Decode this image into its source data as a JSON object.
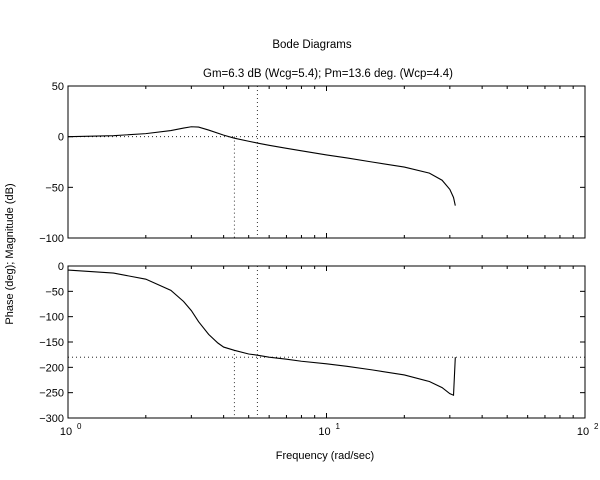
{
  "chart_data": {
    "type": "line",
    "title": "Bode Diagrams",
    "subtitle": "Gm=6.3 dB (Wcg=5.4);  Pm=13.6 deg. (Wcp=4.4)",
    "xlabel": "Frequency (rad/sec)",
    "ylabel": "Phase (deg); Magnitude (dB)",
    "x_scale": "log",
    "xlim": [
      1,
      100
    ],
    "x_ticks": [
      {
        "value": 1,
        "base": "10",
        "exp": "0"
      },
      {
        "value": 10,
        "base": "10",
        "exp": "1"
      },
      {
        "value": 100,
        "base": "10",
        "exp": "2"
      }
    ],
    "crossover_frequencies": {
      "wcg": 5.4,
      "wcp": 4.4
    },
    "grid": false,
    "panels": [
      {
        "name": "magnitude",
        "ylim": [
          -100,
          50
        ],
        "yticks": [
          50,
          0,
          -50,
          -100
        ],
        "ytick_labels": [
          "50",
          "0",
          "−50",
          "−100"
        ],
        "reference_level": 0,
        "series": [
          {
            "x": [
              1.0,
              1.5,
              2.0,
              2.5,
              2.8,
              3.0,
              3.2,
              3.5,
              4.0,
              4.4,
              5.0,
              5.4,
              6.0,
              7.0,
              8.0,
              10.0,
              12.0,
              15.0,
              20.0,
              25.0,
              28.0,
              30.0,
              31.0,
              31.5
            ],
            "y": [
              0,
              1,
              3,
              6,
              8.5,
              9.8,
              9.5,
              6.5,
              1.5,
              -1.5,
              -4.5,
              -6.3,
              -8.5,
              -11.5,
              -14,
              -18,
              -21,
              -25,
              -30,
              -36,
              -43,
              -52,
              -60,
              -68
            ]
          }
        ]
      },
      {
        "name": "phase",
        "ylim": [
          -300,
          0
        ],
        "yticks": [
          0,
          -50,
          -100,
          -150,
          -200,
          -250,
          -300
        ],
        "ytick_labels": [
          "0",
          "−50",
          "−100",
          "−150",
          "−200",
          "−250",
          "−300"
        ],
        "reference_level": -180,
        "series": [
          {
            "x": [
              1.0,
              1.5,
              2.0,
              2.5,
              2.8,
              3.0,
              3.2,
              3.5,
              3.8,
              4.0,
              4.4,
              5.0,
              5.4,
              6.0,
              7.0,
              8.0,
              10.0,
              12.0,
              15.0,
              20.0,
              25.0,
              28.0,
              30.0,
              31.0,
              31.2,
              31.5
            ],
            "y": [
              -8,
              -14,
              -26,
              -48,
              -70,
              -88,
              -110,
              -135,
              -152,
              -160,
              -166.4,
              -173.7,
              -176,
              -180,
              -184,
              -188,
              -193,
              -198,
              -205,
              -215,
              -228,
              -240,
              -252,
              -255,
              -225,
              -180
            ]
          }
        ]
      }
    ]
  }
}
